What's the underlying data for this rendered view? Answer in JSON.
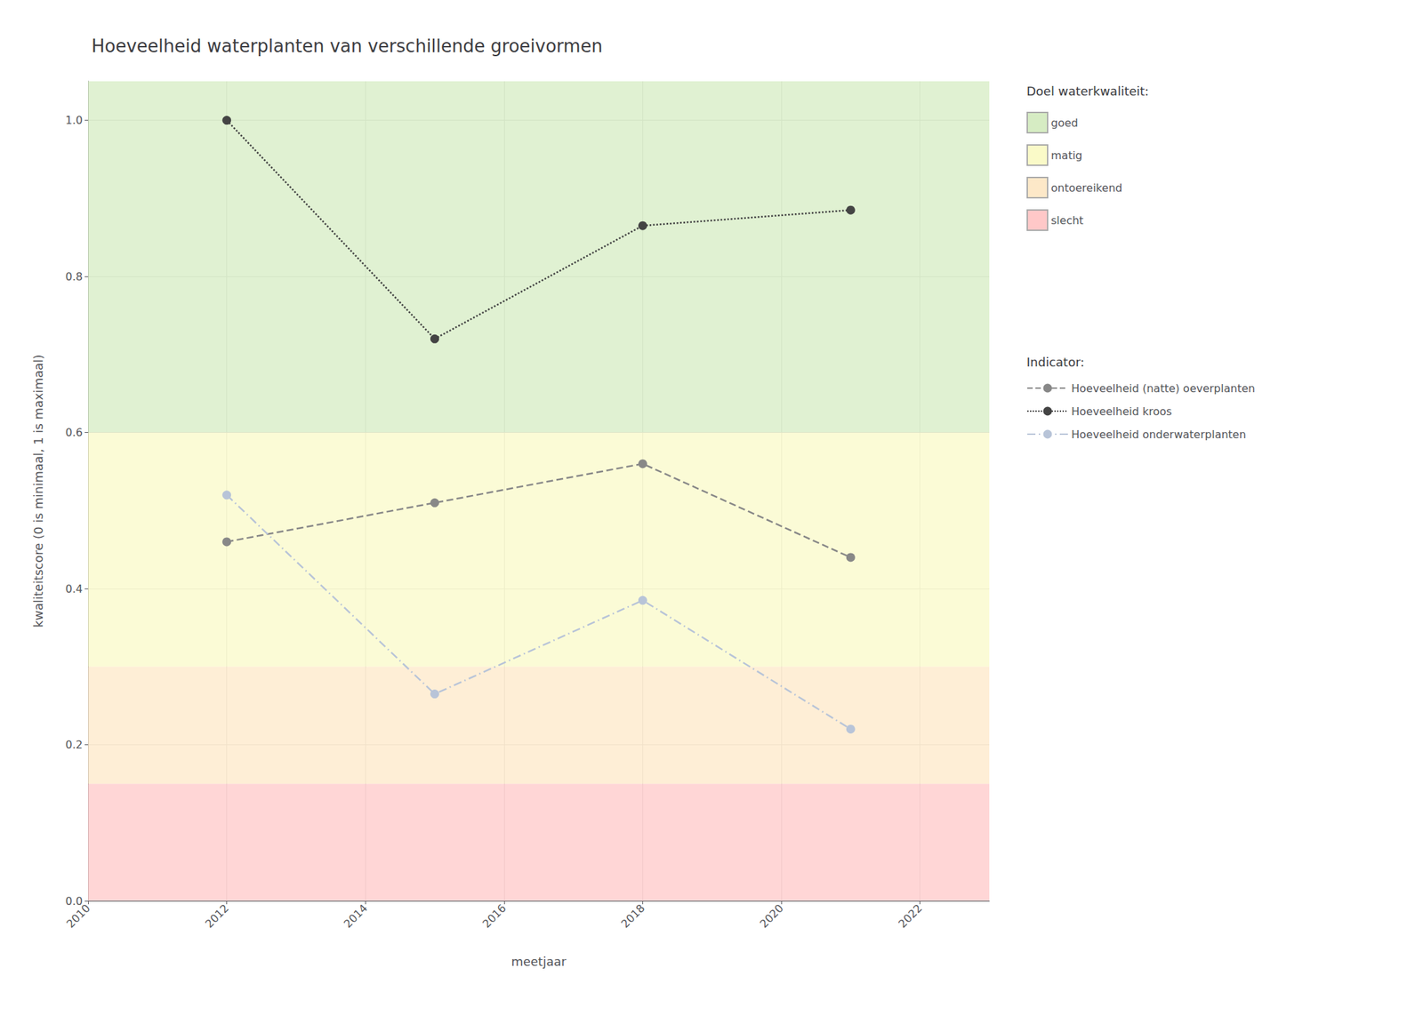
{
  "chart_data": {
    "type": "line",
    "title": "Hoeveelheid waterplanten van verschillende groeivormen",
    "x_label": "meetjaar",
    "y_label": "kwaliteitscore (0 is minimaal, 1 is maximaal)",
    "xlim": [
      2010,
      2023
    ],
    "ylim": [
      0.0,
      1.05
    ],
    "xticks": [
      2010,
      2012,
      2014,
      2016,
      2018,
      2020,
      2022
    ],
    "yticks": [
      {
        "value": 0.0,
        "label": "0.0"
      },
      {
        "value": 0.2,
        "label": "0.2"
      },
      {
        "value": 0.4,
        "label": "0.4"
      },
      {
        "value": 0.6,
        "label": "0.6"
      },
      {
        "value": 0.8,
        "label": "0.8"
      },
      {
        "value": 1.0,
        "label": "1.0"
      }
    ],
    "grid": true,
    "legend": "right",
    "bands_title": "Doel waterkwaliteit:",
    "bands": [
      {
        "name": "goed",
        "ymin": 0.6,
        "ymax": 1.05,
        "color": "#d6ecc3"
      },
      {
        "name": "matig",
        "ymin": 0.3,
        "ymax": 0.6,
        "color": "#fafac8"
      },
      {
        "name": "ontoereikend",
        "ymin": 0.15,
        "ymax": 0.3,
        "color": "#fde8c8"
      },
      {
        "name": "slecht",
        "ymin": 0.0,
        "ymax": 0.15,
        "color": "#ffc8c8"
      }
    ],
    "series_title": "Indicator:",
    "series": [
      {
        "name": "Hoeveelheid (natte) oeverplanten",
        "color": "#888888",
        "x": [
          2012,
          2015,
          2018,
          2021
        ],
        "values": [
          0.46,
          0.51,
          0.56,
          0.44
        ],
        "marker": "circle",
        "line_style": "dashed"
      },
      {
        "name": "Hoeveelheid kroos",
        "color": "#444444",
        "x": [
          2012,
          2015,
          2018,
          2021
        ],
        "values": [
          1.0,
          0.72,
          0.865,
          0.885
        ],
        "marker": "circle",
        "line_style": "dotted"
      },
      {
        "name": "Hoeveelheid onderwaterplanten",
        "color": "#b8c4d8",
        "x": [
          2012,
          2015,
          2018,
          2021
        ],
        "values": [
          0.52,
          0.265,
          0.385,
          0.22
        ],
        "marker": "circle",
        "line_style": "dashdot"
      }
    ]
  }
}
